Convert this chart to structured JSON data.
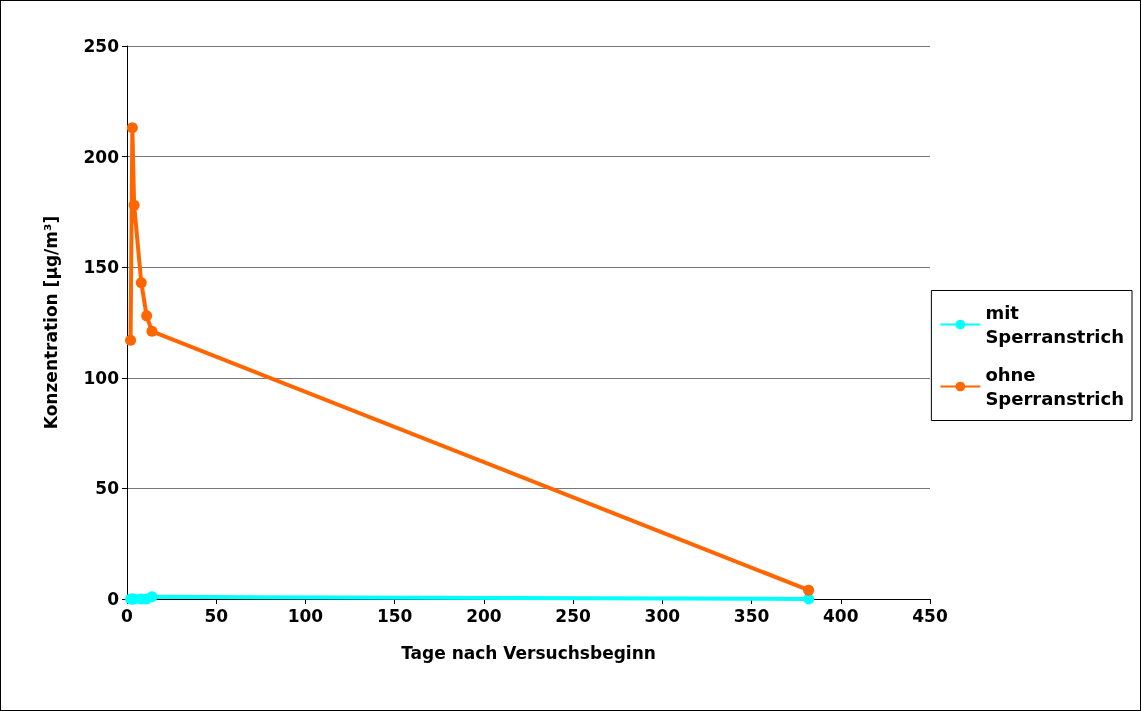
{
  "chart_data": {
    "type": "line",
    "xlabel": "Tage nach Versuchsbeginn",
    "ylabel": "Konzentration [µg/m³]",
    "series": [
      {
        "name": "mit Sperranstrich",
        "color": "#00ffff",
        "x": [
          2,
          3,
          4,
          8,
          11,
          14,
          382
        ],
        "values": [
          0,
          0,
          0,
          0,
          0,
          1,
          0
        ]
      },
      {
        "name": "ohne Sperranstrich",
        "color": "#ff6600",
        "x": [
          2,
          3,
          4,
          8,
          11,
          14,
          382
        ],
        "values": [
          117,
          213,
          178,
          143,
          128,
          121,
          4
        ]
      }
    ],
    "xlim": [
      0,
      450
    ],
    "xticks": [
      0,
      50,
      100,
      150,
      200,
      250,
      300,
      350,
      400,
      450
    ],
    "ylim": [
      0,
      250
    ],
    "yticks": [
      0,
      50,
      100,
      150,
      200,
      250
    ],
    "grid": "y",
    "legend": "right",
    "marker": "circle",
    "line_style": "solid"
  }
}
